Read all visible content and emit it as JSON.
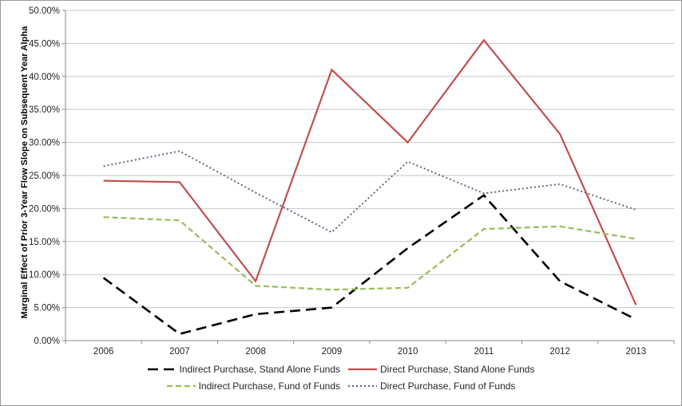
{
  "chart_data": {
    "type": "line",
    "title": "",
    "xlabel": "",
    "ylabel": "Marginal Effect of Prior 3-Year Flow Slope on Subsequent Year Alpha",
    "x": [
      "2006",
      "2007",
      "2008",
      "2009",
      "2010",
      "2011",
      "2012",
      "2013"
    ],
    "ylim": [
      0,
      50
    ],
    "ytick_step": 5,
    "yticks": [
      "0.00%",
      "5.00%",
      "10.00%",
      "15.00%",
      "20.00%",
      "25.00%",
      "30.00%",
      "35.00%",
      "40.00%",
      "45.00%",
      "50.00%"
    ],
    "grid": true,
    "legend_position": "bottom",
    "legend_rows": [
      [
        0,
        1
      ],
      [
        2,
        3
      ]
    ],
    "series": [
      {
        "name": "Indirect Purchase, Stand Alone Funds",
        "color": "#000000",
        "style": "long-dash",
        "values": [
          9.5,
          1.0,
          4.0,
          5.0,
          14.0,
          22.0,
          9.0,
          3.2
        ]
      },
      {
        "name": "Direct Purchase, Stand Alone Funds",
        "color": "#c0504d",
        "style": "solid",
        "values": [
          24.2,
          24.0,
          9.0,
          41.0,
          30.0,
          45.5,
          31.3,
          5.4
        ]
      },
      {
        "name": "Indirect Purchase, Fund of Funds",
        "color": "#9bbb59",
        "style": "dash",
        "values": [
          18.7,
          18.2,
          8.3,
          7.7,
          8.0,
          16.9,
          17.3,
          15.4
        ]
      },
      {
        "name": "Direct Purchase, Fund of Funds",
        "color": "#5f5f7d",
        "style": "dot",
        "values": [
          26.4,
          28.7,
          22.4,
          16.4,
          27.1,
          22.3,
          23.7,
          19.8
        ]
      }
    ]
  },
  "colors": {
    "gridline": "#c6c6c6",
    "axis": "#898989",
    "tick_text": "#262626",
    "frame": "#9b9b9b"
  }
}
